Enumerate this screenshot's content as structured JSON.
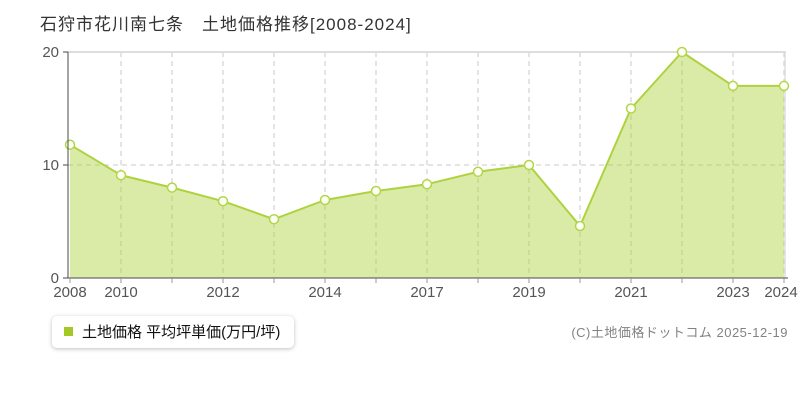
{
  "page": {
    "title": "石狩市花川南七条　土地価格推移[2008-2024]",
    "copyright": "(C)土地価格ドットコム 2025-12-19"
  },
  "legend": {
    "label": "土地価格 平均坪単価(万円/坪)",
    "marker_color": "#a4c926"
  },
  "chart_data": {
    "type": "area",
    "title": "石狩市花川南七条 土地価格推移[2008-2024]",
    "xlabel": "",
    "ylabel": "平均坪単価(万円/坪)",
    "x": [
      2008,
      2010,
      2011,
      2012,
      2013,
      2014,
      2015,
      2017,
      2018,
      2019,
      2020,
      2021,
      2022,
      2023,
      2024
    ],
    "values": [
      11.8,
      9.1,
      8.0,
      6.8,
      5.2,
      6.9,
      7.7,
      8.3,
      9.4,
      10.0,
      4.6,
      15.0,
      20.0,
      17.0,
      17.0
    ],
    "x_tick_labels": [
      {
        "index": 0,
        "label": "2008"
      },
      {
        "index": 1,
        "label": "2010"
      },
      {
        "index": 3,
        "label": "2012"
      },
      {
        "index": 5,
        "label": "2014"
      },
      {
        "index": 7,
        "label": "2017"
      },
      {
        "index": 9,
        "label": "2019"
      },
      {
        "index": 11,
        "label": "2021"
      },
      {
        "index": 13,
        "label": "2023"
      },
      {
        "index": 14,
        "label": "2024"
      }
    ],
    "ylim": [
      0,
      20
    ],
    "yticks": [
      0,
      10,
      20
    ],
    "grid": true,
    "legend_position": "bottom-left",
    "series_label": "土地価格 平均坪単価(万円/坪)",
    "colors": {
      "line": "#aed23f",
      "fill": "rgba(174,210,62,0.45)",
      "marker_fill": "#fdfef6",
      "marker_stroke": "#b2d647",
      "grid": "#c8c8c8",
      "border": "#dddddd",
      "axis": "#4a4a4a",
      "tick": "#999999",
      "tick_label": "#555555"
    }
  }
}
